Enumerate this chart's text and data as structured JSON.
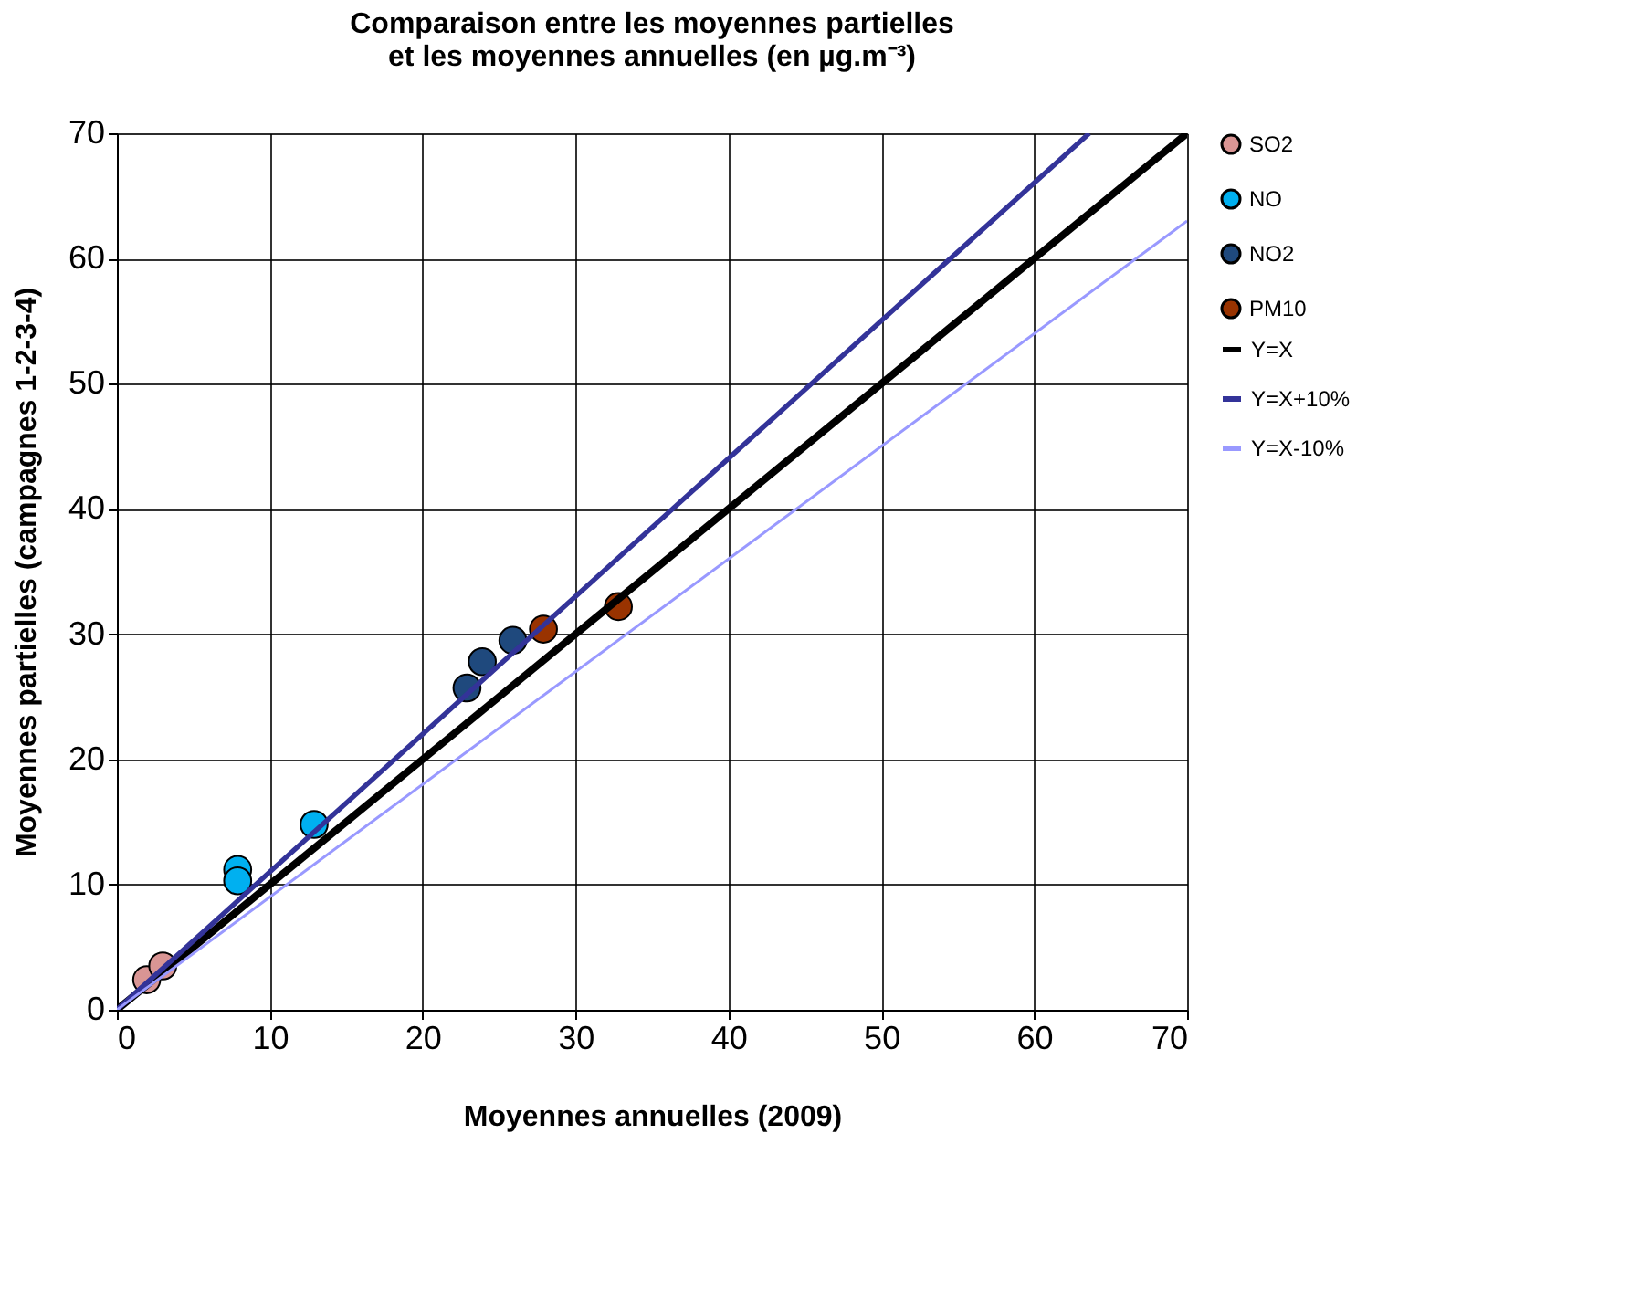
{
  "chart_data": {
    "type": "scatter",
    "title": [
      "Comparaison entre les moyennes partielles",
      "et les moyennes annuelles (en µg.m⁻³)"
    ],
    "xlabel": "Moyennes annuelles (2009)",
    "ylabel": "Moyennes partielles (campagnes 1-2-3-4)",
    "xlim": [
      0,
      70
    ],
    "ylim": [
      0,
      70
    ],
    "xticks": [
      0,
      10,
      20,
      30,
      40,
      50,
      60,
      70
    ],
    "yticks": [
      0,
      10,
      20,
      30,
      40,
      50,
      60,
      70
    ],
    "grid": true,
    "legend": "right",
    "series": [
      {
        "name": "SO2",
        "marker": "circle",
        "color": "#d99594",
        "x": [
          1.95,
          3.0
        ],
        "values": [
          2.4,
          3.5
        ]
      },
      {
        "name": "NO",
        "marker": "circle",
        "color": "#00b0f0",
        "x": [
          7.9,
          7.9,
          12.9
        ],
        "values": [
          11.2,
          10.3,
          14.8
        ]
      },
      {
        "name": "NO2",
        "marker": "circle",
        "color": "#1f497d",
        "x": [
          22.9,
          23.9,
          25.9
        ],
        "values": [
          25.7,
          27.8,
          29.5
        ]
      },
      {
        "name": "PM10",
        "marker": "circle",
        "color": "#993300",
        "x": [
          27.9,
          32.8
        ],
        "values": [
          30.4,
          32.2
        ]
      },
      {
        "name": "Y=X",
        "type": "line",
        "color": "#000000",
        "x": [
          0,
          70
        ],
        "values": [
          0,
          70
        ]
      },
      {
        "name": "Y=X+10%",
        "type": "line",
        "color": "#333399",
        "x": [
          0,
          63.6
        ],
        "values": [
          0,
          70
        ]
      },
      {
        "name": "Y=X-10%",
        "type": "line",
        "color": "#9999ff",
        "x": [
          0,
          70
        ],
        "values": [
          0,
          63
        ]
      }
    ]
  }
}
